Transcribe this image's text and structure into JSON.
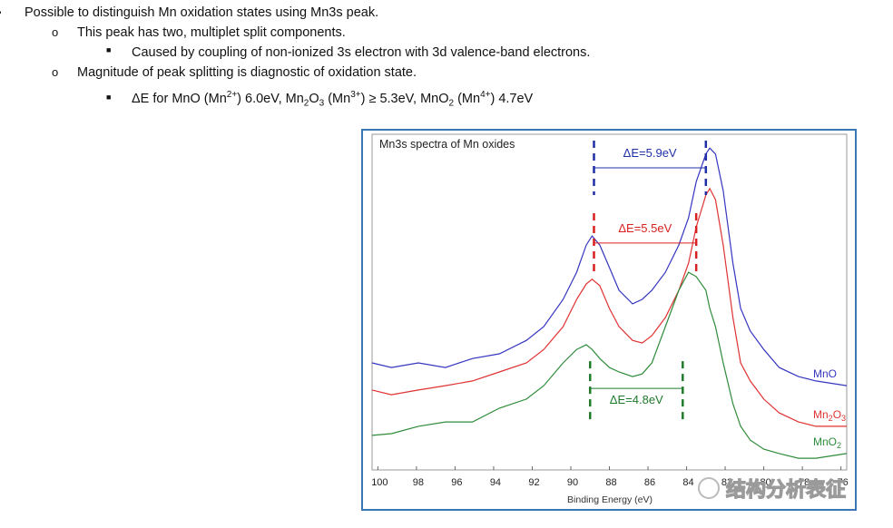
{
  "bullets": [
    "Possible to distinguish Mn oxidation states using Mn3s peak.",
    "This peak has two, multiplet split components.",
    "Caused by coupling of non-ionized 3s electron with 3d valence-band electrons.",
    "Magnitude of peak splitting is diagnostic of oxidation state.",
    [
      {
        "text": "ΔE for MnO (Mn"
      },
      {
        "text": "2+",
        "pos": "sup"
      },
      {
        "text": ") 6.0eV, Mn"
      },
      {
        "text": "2",
        "pos": "sub"
      },
      {
        "text": "O"
      },
      {
        "text": "3",
        "pos": "sub"
      },
      {
        "text": " (Mn"
      },
      {
        "text": "3+",
        "pos": "sup"
      },
      {
        "text": ") ≥ 5.3eV, MnO"
      },
      {
        "text": "2",
        "pos": "sub"
      },
      {
        "text": " (Mn"
      },
      {
        "text": "4+",
        "pos": "sup"
      },
      {
        "text": ") 4.7eV"
      }
    ]
  ],
  "chart_data": {
    "type": "line",
    "title": "Mn3s spectra of Mn oxides",
    "x_label": "Binding Energy (eV)",
    "xlim": [
      100.3,
      75.7
    ],
    "ylim": [
      0,
      100
    ],
    "xticks": [
      100,
      98,
      96,
      94,
      92,
      90,
      88,
      86,
      84,
      82,
      80,
      78,
      76
    ],
    "x": [
      100.3,
      99.3,
      97.9,
      96.5,
      95.1,
      93.7,
      92.3,
      91.4,
      90.4,
      89.7,
      89.2,
      88.9,
      88.5,
      88.0,
      87.5,
      86.8,
      86.3,
      85.8,
      85.1,
      84.4,
      83.9,
      83.5,
      83.0,
      82.8,
      82.5,
      82.1,
      81.6,
      81.2,
      80.7,
      80.0,
      79.2,
      78.2,
      77.3,
      75.7
    ],
    "series": [
      {
        "name": "MnO",
        "color": "#3535c0",
        "values": [
          31.9,
          30.5,
          31.9,
          30.5,
          33.2,
          34.6,
          38.6,
          42.7,
          50.8,
          58.9,
          67.0,
          69.7,
          67.0,
          60.3,
          53.5,
          49.5,
          50.8,
          53.5,
          58.9,
          67.0,
          75.1,
          85.9,
          94.1,
          95.9,
          94.1,
          83.2,
          61.6,
          48.1,
          41.4,
          35.9,
          30.5,
          27.8,
          26.5,
          25.1
        ]
      },
      {
        "name": "Mn2O3",
        "color": "#e03232",
        "values": [
          23.8,
          22.4,
          23.8,
          25.1,
          26.5,
          29.2,
          31.9,
          35.9,
          42.7,
          50.8,
          55.4,
          56.8,
          54.9,
          48.1,
          42.7,
          38.6,
          37.8,
          40.0,
          45.4,
          53.5,
          61.6,
          72.4,
          81.9,
          83.8,
          80.5,
          67.0,
          45.4,
          31.9,
          26.5,
          21.1,
          17.0,
          14.3,
          13.0,
          13.0
        ]
      },
      {
        "name": "MnO2",
        "color": "#2e8b3a",
        "values": [
          10.3,
          10.8,
          13.0,
          14.3,
          14.3,
          18.4,
          21.1,
          25.1,
          31.9,
          35.9,
          37.3,
          35.9,
          33.2,
          30.5,
          29.2,
          27.8,
          28.6,
          31.9,
          42.7,
          53.5,
          58.9,
          57.6,
          53.5,
          48.1,
          42.7,
          31.9,
          19.7,
          13.0,
          8.9,
          6.2,
          4.9,
          3.5,
          3.5,
          4.9
        ]
      }
    ],
    "annotations": [
      {
        "text": "ΔE=5.9eV",
        "color": "#1f2fa8",
        "x": [
          88.8,
          83.0
        ],
        "y": [
          98.1,
          81.9
        ],
        "bracket_y": 90.0
      },
      {
        "text": "ΔE=5.5eV",
        "color": "#d92020",
        "x": [
          88.8,
          83.5
        ],
        "y": [
          76.5,
          58.9
        ],
        "bracket_y": 67.6
      },
      {
        "text": "ΔE=4.8eV",
        "color": "#1f7a2a",
        "x": [
          89.0,
          84.2
        ],
        "y": [
          32.4,
          15.1
        ],
        "bracket_y": 24.3
      }
    ],
    "watermark": "结构分析表征"
  }
}
